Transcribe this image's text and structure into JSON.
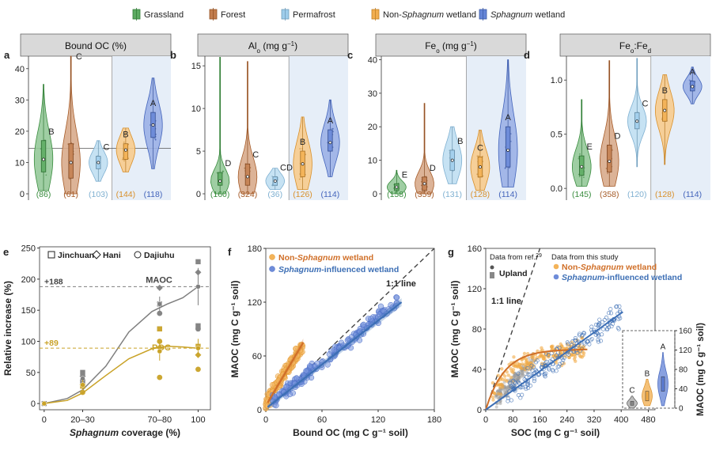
{
  "colors": {
    "grassland": "#3f9c45",
    "forest": "#b8662e",
    "permafrost": "#8dc4e8",
    "nonsph": "#f0a030",
    "sph": "#4a6fd0",
    "headerBg": "#d9d9d9",
    "shade": "#e6eef8",
    "lineBlue": "#3d6fb5",
    "lineOrange": "#d06f28",
    "gold": "#c9a227",
    "gray": "#7f7f7f"
  },
  "legend": [
    {
      "key": "grassland",
      "parts": [
        {
          "t": "Grassland",
          "i": false
        }
      ]
    },
    {
      "key": "forest",
      "parts": [
        {
          "t": "Forest",
          "i": false
        }
      ]
    },
    {
      "key": "permafrost",
      "parts": [
        {
          "t": "Permafrost",
          "i": false
        }
      ]
    },
    {
      "key": "nonsph",
      "parts": [
        {
          "t": "Non-",
          "i": false
        },
        {
          "t": "Sphagnum",
          "i": true
        },
        {
          "t": " wetland",
          "i": false
        }
      ]
    },
    {
      "key": "sph",
      "parts": [
        {
          "t": "Sphagnum",
          "i": true
        },
        {
          "t": " wetland",
          "i": false
        }
      ]
    }
  ],
  "chart_data": [
    {
      "type": "violin",
      "panel": "a",
      "title": "Bound OC (%)",
      "ylim": [
        0,
        45
      ],
      "yticks": [
        0,
        10,
        20,
        30,
        40
      ],
      "ref_line": 14.5,
      "groups": [
        {
          "key": "grassland",
          "median": 11,
          "q1": 7,
          "q3": 17,
          "min": 1,
          "max": 35,
          "letter": "B",
          "n": "(86)"
        },
        {
          "key": "forest",
          "median": 10,
          "q1": 5,
          "q3": 16,
          "min": 0,
          "max": 44,
          "letter": "C",
          "n": "(61)"
        },
        {
          "key": "permafrost",
          "median": 10,
          "q1": 8,
          "q3": 12,
          "min": 4,
          "max": 17,
          "letter": "C",
          "n": "(103)"
        },
        {
          "key": "nonsph",
          "median": 14,
          "q1": 11,
          "q3": 16,
          "min": 7,
          "max": 21,
          "letter": "B",
          "n": "(144)"
        },
        {
          "key": "sph",
          "median": 22,
          "q1": 18,
          "q3": 26,
          "min": 8,
          "max": 37,
          "letter": "A",
          "n": "(118)"
        }
      ]
    },
    {
      "type": "violin",
      "panel": "b",
      "title": "Al",
      "title_sub": "o",
      "title_rest": " (mg g",
      "title_sup": "−1",
      "title_end": ")",
      "ylim": [
        0,
        16.5
      ],
      "yticks": [
        0,
        5,
        10,
        15
      ],
      "groups": [
        {
          "key": "grassland",
          "median": 1.5,
          "q1": 1,
          "q3": 2.5,
          "min": 0,
          "max": 16,
          "letter": "D",
          "n": "(160)"
        },
        {
          "key": "forest",
          "median": 2,
          "q1": 1,
          "q3": 3.5,
          "min": 0,
          "max": 15.5,
          "letter": "C",
          "n": "(324)"
        },
        {
          "key": "permafrost",
          "median": 1.5,
          "q1": 1,
          "q3": 2,
          "min": 0.5,
          "max": 3,
          "letter": "CD",
          "n": "(36)"
        },
        {
          "key": "nonsph",
          "median": 3.5,
          "q1": 2,
          "q3": 5,
          "min": 0.5,
          "max": 9,
          "letter": "B",
          "n": "(126)"
        },
        {
          "key": "sph",
          "median": 6,
          "q1": 5,
          "q3": 7.5,
          "min": 2,
          "max": 11,
          "letter": "A",
          "n": "(114)"
        }
      ]
    },
    {
      "type": "violin",
      "panel": "c",
      "title": "Fe",
      "title_sub": "o",
      "title_rest": " (mg g",
      "title_sup": "−1",
      "title_end": ")",
      "ylim": [
        0,
        42
      ],
      "yticks": [
        0,
        10,
        20,
        30,
        40
      ],
      "groups": [
        {
          "key": "grassland",
          "median": 2,
          "q1": 1,
          "q3": 3,
          "min": 0,
          "max": 7,
          "letter": "E",
          "n": "(158)"
        },
        {
          "key": "forest",
          "median": 3,
          "q1": 1,
          "q3": 5,
          "min": 0,
          "max": 27,
          "letter": "D",
          "n": "(359)"
        },
        {
          "key": "permafrost",
          "median": 10,
          "q1": 7,
          "q3": 13,
          "min": 3,
          "max": 20,
          "letter": "B",
          "n": "(131)"
        },
        {
          "key": "nonsph",
          "median": 8,
          "q1": 5,
          "q3": 11,
          "min": 1,
          "max": 19,
          "letter": "C",
          "n": "(128)"
        },
        {
          "key": "sph",
          "median": 13,
          "q1": 8,
          "q3": 20,
          "min": 2,
          "max": 40,
          "letter": "A",
          "n": "(114)"
        }
      ]
    },
    {
      "type": "violin",
      "panel": "d",
      "title": "Fe",
      "title_sub": "o",
      "title_rest": ":Fe",
      "title_sub2": "d",
      "ylim": [
        -0.05,
        1.25
      ],
      "yticks": [
        0.0,
        0.5,
        1.0
      ],
      "groups": [
        {
          "key": "grassland",
          "median": 0.2,
          "q1": 0.12,
          "q3": 0.3,
          "min": 0.02,
          "max": 0.82,
          "letter": "E",
          "n": "(145)"
        },
        {
          "key": "forest",
          "median": 0.25,
          "q1": 0.15,
          "q3": 0.4,
          "min": 0.02,
          "max": 1.18,
          "letter": "D",
          "n": "(358)"
        },
        {
          "key": "permafrost",
          "median": 0.62,
          "q1": 0.55,
          "q3": 0.7,
          "min": 0.2,
          "max": 1.2,
          "letter": "C",
          "n": "(120)"
        },
        {
          "key": "nonsph",
          "median": 0.72,
          "q1": 0.62,
          "q3": 0.82,
          "min": 0.22,
          "max": 1.05,
          "letter": "B",
          "n": "(128)"
        },
        {
          "key": "sph",
          "median": 0.94,
          "q1": 0.9,
          "q3": 0.99,
          "min": 0.78,
          "max": 1.12,
          "letter": "A",
          "n": "(114)"
        }
      ]
    },
    {
      "type": "scatter-line",
      "panel": "e",
      "xlabel_italic": "Sphagnum",
      "xlabel_rest": " coverage (%)",
      "ylabel": "Relative increase (%)",
      "xticks": [
        {
          "pos": 0,
          "label": "0"
        },
        {
          "pos": 25,
          "label": "20–30"
        },
        {
          "pos": 75,
          "label": "70–80"
        },
        {
          "pos": 100,
          "label": "100"
        }
      ],
      "xlim": [
        -3,
        108
      ],
      "ylim": [
        -10,
        252
      ],
      "yticks": [
        0,
        50,
        100,
        150,
        200,
        250
      ],
      "legend": [
        {
          "marker": "square",
          "label": "Jinchuan"
        },
        {
          "marker": "diamond",
          "label": "Hani"
        },
        {
          "marker": "circle",
          "label": "Dajiuhu"
        }
      ],
      "maoc": {
        "label": "MAOC",
        "ref": 188,
        "ref_label": "+188",
        "mean": [
          [
            0,
            0
          ],
          [
            25,
            40
          ],
          [
            75,
            160
          ],
          [
            100,
            188
          ]
        ],
        "err": [
          5,
          12,
          30
        ],
        "curve": [
          [
            0,
            0
          ],
          [
            15,
            8
          ],
          [
            25,
            22
          ],
          [
            40,
            60
          ],
          [
            55,
            115
          ],
          [
            70,
            148
          ],
          [
            80,
            160
          ],
          [
            90,
            170
          ],
          [
            100,
            188
          ]
        ],
        "points": [
          {
            "m": "square",
            "x": 25,
            "y": 50
          },
          {
            "m": "square",
            "x": 25,
            "y": 35
          },
          {
            "m": "square",
            "x": 75,
            "y": 160
          },
          {
            "m": "square",
            "x": 75,
            "y": 120
          },
          {
            "m": "square",
            "x": 100,
            "y": 228
          },
          {
            "m": "square",
            "x": 100,
            "y": 125
          },
          {
            "m": "diamond",
            "x": 25,
            "y": 44
          },
          {
            "m": "diamond",
            "x": 75,
            "y": 186
          },
          {
            "m": "diamond",
            "x": 100,
            "y": 211
          },
          {
            "m": "circle",
            "x": 25,
            "y": 38
          },
          {
            "m": "circle",
            "x": 75,
            "y": 145
          },
          {
            "m": "circle",
            "x": 100,
            "y": 120
          },
          {
            "m": "square",
            "x": 0,
            "y": 0
          }
        ]
      },
      "poc": {
        "label": "POC",
        "ref": 89,
        "ref_label": "+89",
        "mean": [
          [
            0,
            0
          ],
          [
            25,
            30
          ],
          [
            75,
            84
          ],
          [
            100,
            89
          ]
        ],
        "err": [
          8,
          15,
          15
        ],
        "curve": [
          [
            0,
            0
          ],
          [
            15,
            5
          ],
          [
            25,
            17
          ],
          [
            40,
            45
          ],
          [
            55,
            72
          ],
          [
            70,
            88
          ],
          [
            80,
            92
          ],
          [
            90,
            91
          ],
          [
            100,
            89
          ]
        ],
        "points": [
          {
            "m": "square",
            "x": 25,
            "y": 28
          },
          {
            "m": "square",
            "x": 75,
            "y": 120
          },
          {
            "m": "square",
            "x": 100,
            "y": 92
          },
          {
            "m": "diamond",
            "x": 25,
            "y": 30
          },
          {
            "m": "diamond",
            "x": 75,
            "y": 90
          },
          {
            "m": "diamond",
            "x": 100,
            "y": 78
          },
          {
            "m": "circle",
            "x": 25,
            "y": 18
          },
          {
            "m": "circle",
            "x": 75,
            "y": 42
          },
          {
            "m": "circle",
            "x": 100,
            "y": 55
          },
          {
            "m": "circle",
            "x": 75,
            "y": 100
          }
        ]
      }
    },
    {
      "type": "scatter",
      "panel": "f",
      "xlabel": "Bound OC (mg C g⁻¹ soil)",
      "ylabel": "MAOC (mg C g⁻¹ soil)",
      "xlim": [
        0,
        180
      ],
      "ylim": [
        0,
        180
      ],
      "xticks": [
        0,
        60,
        120,
        180
      ],
      "yticks": [
        0,
        60,
        120,
        180
      ],
      "one_to_one_label": "1:1 line",
      "series": [
        {
          "key": "nonsph",
          "name_parts": [
            {
              "t": "Non-",
              "i": false
            },
            {
              "t": "Sphagnum",
              "i": true
            },
            {
              "t": " wetland",
              "i": false
            }
          ],
          "fit": [
            [
              2,
              8
            ],
            [
              40,
              75
            ]
          ],
          "cloud": {
            "xmin": 0,
            "xmax": 40,
            "slope": 1.6,
            "int": 8,
            "spread": 12,
            "n": 170
          }
        },
        {
          "key": "sph",
          "name_parts": [
            {
              "t": "Sphagnum",
              "i": true
            },
            {
              "t": "-influenced wetland",
              "i": false
            }
          ],
          "fit": [
            [
              2,
              3
            ],
            [
              145,
              120
            ]
          ],
          "cloud": {
            "xmin": 5,
            "xmax": 140,
            "slope": 0.83,
            "int": 4,
            "spread": 13,
            "n": 180
          }
        }
      ]
    },
    {
      "type": "scatter",
      "panel": "g",
      "xlabel": "SOC (mg C g⁻¹ soil)",
      "ylabel": "MAOC (mg C g⁻¹ soil)",
      "xlim": [
        0,
        500
      ],
      "ylim": [
        0,
        160
      ],
      "xticks": [
        0,
        80,
        160,
        240,
        320,
        400,
        480
      ],
      "yticks": [
        0,
        40,
        80,
        120,
        160
      ],
      "one_to_one_label": "1:1 line",
      "ref_note": "Data from ref.",
      "ref_sup": "29",
      "study_note": "Data from this study",
      "upland_label": "Upland",
      "series": [
        {
          "key": "nonsph",
          "name_parts": [
            {
              "t": "Non-",
              "i": false
            },
            {
              "t": "Sphagnum",
              "i": true
            },
            {
              "t": " wetland",
              "i": false
            }
          ]
        },
        {
          "key": "sph",
          "name_parts": [
            {
              "t": "Sphagnum",
              "i": true
            },
            {
              "t": "-influenced wetland",
              "i": false
            }
          ]
        }
      ],
      "inset": {
        "ylabel": "MAOC (mg C g⁻¹ soil)",
        "ylim": [
          0,
          160
        ],
        "yticks": [
          0,
          40,
          80,
          120,
          160
        ],
        "groups": [
          {
            "key": "gray",
            "median": 10,
            "q1": 6,
            "q3": 14,
            "min": 0,
            "max": 25,
            "letter": "C"
          },
          {
            "key": "nonsph",
            "median": 25,
            "q1": 15,
            "q3": 35,
            "min": 5,
            "max": 60,
            "letter": "B"
          },
          {
            "key": "sph",
            "median": 50,
            "q1": 35,
            "q3": 65,
            "min": 5,
            "max": 115,
            "letter": "A"
          }
        ]
      }
    }
  ]
}
